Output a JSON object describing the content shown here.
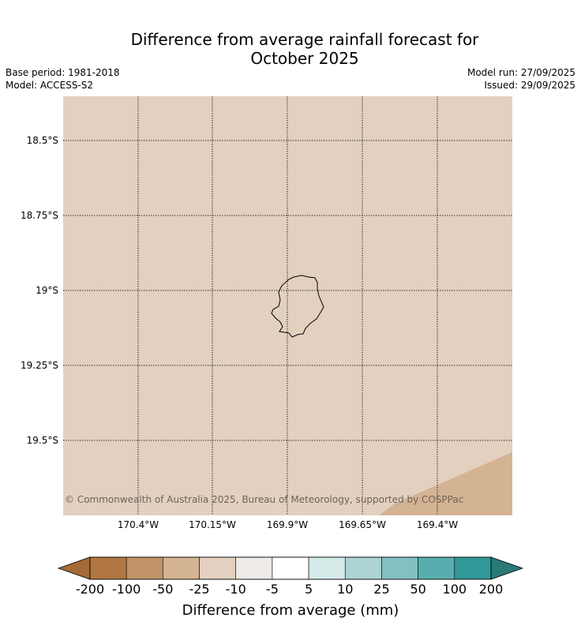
{
  "title": {
    "line1": "Difference from average rainfall forecast for",
    "line2": "October 2025"
  },
  "meta": {
    "base_period": "Base period: 1981-2018",
    "model": "Model: ACCESS-S2",
    "model_run": "Model run: 27/09/2025",
    "issued": "Issued: 29/09/2025"
  },
  "map": {
    "lat_labels": [
      "18.5°S",
      "18.75°S",
      "19°S",
      "19.25°S",
      "19.5°S"
    ],
    "lon_labels": [
      "170.4°W",
      "170.15°W",
      "169.9°W",
      "169.65°W",
      "169.4°W"
    ],
    "background_color": "#e3d0bf",
    "corner_fill_color": "#d4b393",
    "copyright": "© Commonwealth of Australia 2025, Bureau of Meteorology, supported by COSPPac"
  },
  "colorbar": {
    "label": "Difference from average (mm)",
    "ticks": [
      "-200",
      "-100",
      "-50",
      "-25",
      "-10",
      "-5",
      "5",
      "10",
      "25",
      "50",
      "100",
      "200"
    ],
    "low_extend_color": "#a56a35",
    "high_extend_color": "#2a7a78",
    "colors": [
      "#b07840",
      "#c09468",
      "#d4b393",
      "#e3d0bf",
      "#efebe7",
      "#ffffff",
      "#d4ebea",
      "#acd4d3",
      "#82c1c1",
      "#58aeae",
      "#319898"
    ]
  }
}
